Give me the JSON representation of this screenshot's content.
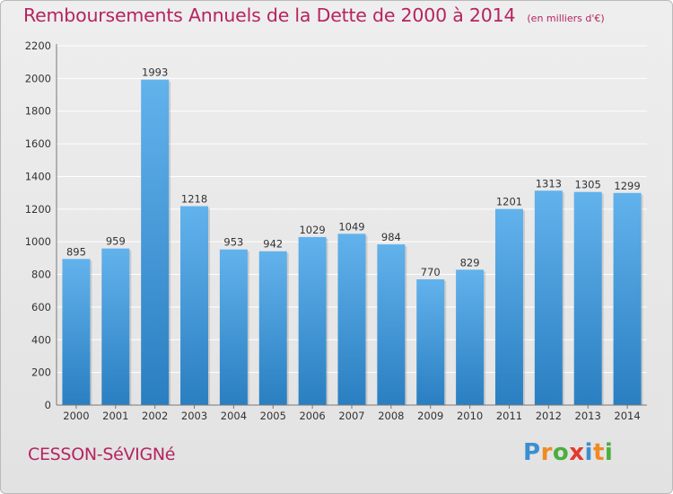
{
  "title": "Remboursements Annuels de la Dette de 2000 à 2014",
  "subtitle": "(en milliers d'€)",
  "city": "CESSON-SéVIGNé",
  "logo": {
    "text": "Proxiti",
    "letters": [
      {
        "ch": "P",
        "color": "#3a8fd0"
      },
      {
        "ch": "r",
        "color": "#f08a22"
      },
      {
        "ch": "o",
        "color": "#4cae3f"
      },
      {
        "ch": "x",
        "color": "#e23b2e"
      },
      {
        "ch": "i",
        "color": "#3a8fd0"
      },
      {
        "ch": "t",
        "color": "#f08a22"
      },
      {
        "ch": "i",
        "color": "#4cae3f"
      }
    ]
  },
  "colors": {
    "bar_top": "#62b2ec",
    "bar_bottom": "#2a7fc1",
    "title": "#b5245f"
  },
  "chart_data": {
    "type": "bar",
    "categories": [
      "2000",
      "2001",
      "2002",
      "2003",
      "2004",
      "2005",
      "2006",
      "2007",
      "2008",
      "2009",
      "2010",
      "2011",
      "2012",
      "2013",
      "2014"
    ],
    "values": [
      895,
      959,
      1993,
      1218,
      953,
      942,
      1029,
      1049,
      984,
      770,
      829,
      1201,
      1313,
      1305,
      1299
    ],
    "ylim": [
      0,
      2200
    ],
    "yticks": [
      0,
      200,
      400,
      600,
      800,
      1000,
      1200,
      1400,
      1600,
      1800,
      2000,
      2200
    ],
    "grid": true
  }
}
